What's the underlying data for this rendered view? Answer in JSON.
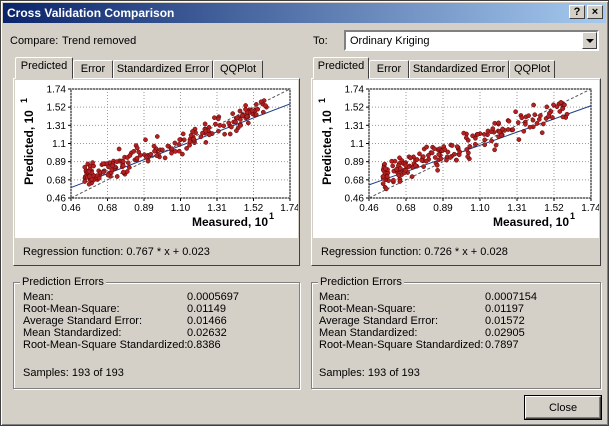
{
  "window": {
    "title": "Cross Validation Comparison",
    "help_label": "?",
    "close_label": "×"
  },
  "compare": {
    "label": "Compare:",
    "value": "Trend removed"
  },
  "to": {
    "label": "To:",
    "value": "Ordinary Kriging"
  },
  "tabs": [
    "Predicted",
    "Error",
    "Standardized Error",
    "QQPlot"
  ],
  "panels": [
    {
      "regression": "Regression function:   0.767 * x + 0.023",
      "errors": {
        "title": "Prediction Errors",
        "rows": [
          {
            "label": "Mean:",
            "value": "0.0005697"
          },
          {
            "label": "Root-Mean-Square:",
            "value": "0.01149"
          },
          {
            "label": "Average Standard Error:",
            "value": "0.01466"
          },
          {
            "label": "Mean Standardized:",
            "value": "0.02632"
          },
          {
            "label": "Root-Mean-Square Standardized:",
            "value": "0.8386"
          }
        ],
        "samples": "Samples: 193 of 193"
      }
    },
    {
      "regression": "Regression function:   0.726 * x + 0.028",
      "errors": {
        "title": "Prediction Errors",
        "rows": [
          {
            "label": "Mean:",
            "value": "0.0007154"
          },
          {
            "label": "Root-Mean-Square:",
            "value": "0.01197"
          },
          {
            "label": "Average Standard Error:",
            "value": "0.01572"
          },
          {
            "label": "Mean Standardized:",
            "value": "0.02905"
          },
          {
            "label": "Root-Mean-Square Standardized:",
            "value": "0.7897"
          }
        ],
        "samples": "Samples: 193 of 193"
      }
    }
  ],
  "close_button": "Close",
  "chart_data": [
    {
      "type": "scatter",
      "xlabel": "Measured, 10",
      "ylabel": "Predicted, 10",
      "axis_exponent": "1",
      "x_ticks": [
        "0.46",
        "0.68",
        "0.89",
        "1.10",
        "1.31",
        "1.52",
        "1.74"
      ],
      "y_ticks": [
        "1.74",
        "1.52",
        "1.31",
        "1.1",
        "0.89",
        "0.68",
        "0.46"
      ],
      "xlim": [
        0.46,
        1.74
      ],
      "ylim": [
        0.46,
        1.74
      ],
      "regression": {
        "slope": 0.767,
        "intercept": 0.023
      },
      "reference_line": "1:1 dashed",
      "point_color": "#b22222",
      "line_color": "#1f3c88",
      "n_points": 193
    },
    {
      "type": "scatter",
      "xlabel": "Measured, 10",
      "ylabel": "Predicted, 10",
      "axis_exponent": "1",
      "x_ticks": [
        "0.46",
        "0.68",
        "0.89",
        "1.10",
        "1.31",
        "1.52",
        "1.74"
      ],
      "y_ticks": [
        "1.74",
        "1.52",
        "1.31",
        "1.1",
        "0.89",
        "0.68",
        "0.46"
      ],
      "xlim": [
        0.46,
        1.74
      ],
      "ylim": [
        0.46,
        1.74
      ],
      "regression": {
        "slope": 0.726,
        "intercept": 0.028
      },
      "reference_line": "1:1 dashed",
      "point_color": "#b22222",
      "line_color": "#1f3c88",
      "n_points": 193
    }
  ]
}
